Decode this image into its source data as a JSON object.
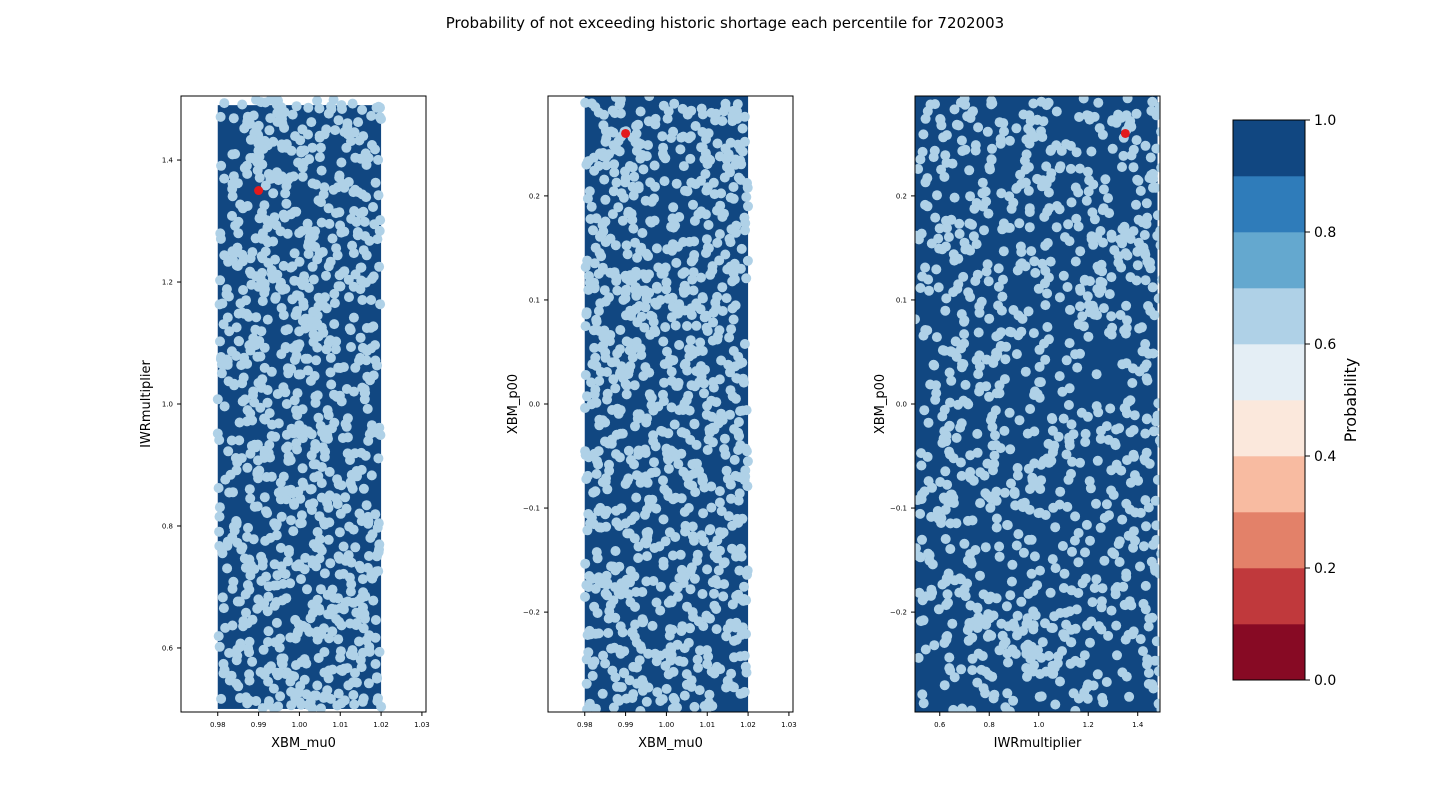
{
  "figure": {
    "title": "Probability of not exceeding historic shortage each percentile for 7202003"
  },
  "chart_data": [
    {
      "type": "scatter",
      "xlabel": "XBM_mu0",
      "ylabel": "IWRmultiplier",
      "xlim": [
        0.971,
        1.031
      ],
      "ylim": [
        0.495,
        1.505
      ],
      "xticks": [
        0.98,
        0.99,
        1.0,
        1.01,
        1.02,
        1.03
      ],
      "xtick_labels": [
        "0.98",
        "0.99",
        "1.00",
        "1.01",
        "1.02",
        "1.03"
      ],
      "yticks": [
        0.6,
        0.8,
        1.0,
        1.2,
        1.4
      ],
      "ytick_labels": [
        "0.6",
        "0.8",
        "1.0",
        "1.2",
        "1.4"
      ],
      "fill_region": {
        "x": [
          0.98,
          1.02
        ],
        "y": [
          0.5,
          1.49
        ],
        "probability": 1.0,
        "color": "#114781"
      },
      "sample_points": {
        "n": 1000,
        "x_range": [
          0.98,
          1.02
        ],
        "y_range": [
          0.5,
          1.5
        ],
        "color": "#afd1e7"
      },
      "historic_point": {
        "x": 0.99,
        "y": 1.35,
        "color": "#e31a1c"
      }
    },
    {
      "type": "scatter",
      "xlabel": "XBM_mu0",
      "ylabel": "XBM_p00",
      "xlim": [
        0.971,
        1.031
      ],
      "ylim": [
        -0.296,
        0.296
      ],
      "xticks": [
        0.98,
        0.99,
        1.0,
        1.01,
        1.02,
        1.03
      ],
      "xtick_labels": [
        "0.98",
        "0.99",
        "1.00",
        "1.01",
        "1.02",
        "1.03"
      ],
      "yticks": [
        -0.2,
        -0.1,
        0.0,
        0.1,
        0.2
      ],
      "ytick_labels": [
        "−0.2",
        "−0.1",
        "0.0",
        "0.1",
        "0.2"
      ],
      "fill_region": {
        "x": [
          0.98,
          1.02
        ],
        "y": [
          -0.296,
          0.296
        ],
        "probability": 1.0,
        "color": "#114781"
      },
      "sample_points": {
        "n": 1000,
        "x_range": [
          0.98,
          1.02
        ],
        "y_range": [
          -0.296,
          0.296
        ],
        "color": "#afd1e7"
      },
      "historic_point": {
        "x": 0.99,
        "y": 0.26,
        "color": "#e31a1c"
      }
    },
    {
      "type": "scatter",
      "xlabel": "IWRmultiplier",
      "ylabel": "XBM_p00",
      "xlim": [
        0.5,
        1.49
      ],
      "ylim": [
        -0.296,
        0.296
      ],
      "xticks": [
        0.6,
        0.8,
        1.0,
        1.2,
        1.4
      ],
      "xtick_labels": [
        "0.6",
        "0.8",
        "1.0",
        "1.2",
        "1.4"
      ],
      "yticks": [
        -0.2,
        -0.1,
        0.0,
        0.1,
        0.2
      ],
      "ytick_labels": [
        "−0.2",
        "−0.1",
        "0.0",
        "0.1",
        "0.2"
      ],
      "fill_region": {
        "x": [
          0.5,
          1.48
        ],
        "y": [
          -0.296,
          0.296
        ],
        "probability": 1.0,
        "color": "#114781"
      },
      "sample_points": {
        "n": 1000,
        "x_range": [
          0.5,
          1.5
        ],
        "y_range": [
          -0.296,
          0.296
        ],
        "color": "#afd1e7"
      },
      "historic_point": {
        "x": 1.35,
        "y": 0.26,
        "color": "#e31a1c"
      }
    }
  ],
  "colorbar": {
    "label": "Probability",
    "range": [
      0.0,
      1.0
    ],
    "ticks": [
      0.0,
      0.2,
      0.4,
      0.6,
      0.8,
      1.0
    ],
    "tick_labels": [
      "0.0",
      "0.2",
      "0.4",
      "0.6",
      "0.8",
      "1.0"
    ],
    "bins": [
      {
        "from": 0.0,
        "to": 0.1,
        "color": "#870a24"
      },
      {
        "from": 0.1,
        "to": 0.2,
        "color": "#c0393c"
      },
      {
        "from": 0.2,
        "to": 0.3,
        "color": "#e38169"
      },
      {
        "from": 0.3,
        "to": 0.4,
        "color": "#f8bba1"
      },
      {
        "from": 0.4,
        "to": 0.5,
        "color": "#fbe8dc"
      },
      {
        "from": 0.5,
        "to": 0.6,
        "color": "#e4eef5"
      },
      {
        "from": 0.6,
        "to": 0.7,
        "color": "#afd1e7"
      },
      {
        "from": 0.7,
        "to": 0.8,
        "color": "#64a8cf"
      },
      {
        "from": 0.8,
        "to": 0.9,
        "color": "#2f7cba"
      },
      {
        "from": 0.9,
        "to": 1.0,
        "color": "#114781"
      }
    ]
  }
}
